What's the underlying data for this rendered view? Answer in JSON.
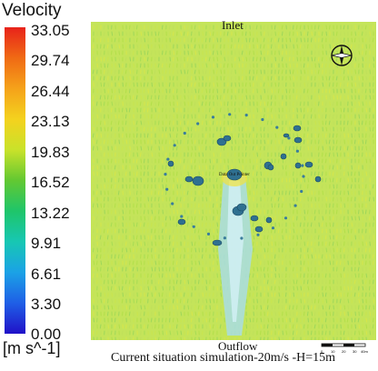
{
  "legend": {
    "title": "Velocity",
    "ticks": [
      "33.05",
      "29.74",
      "26.44",
      "23.13",
      "19.83",
      "16.52",
      "13.22",
      "9.91",
      "6.61",
      "3.30",
      "0.00"
    ],
    "units": "[m s^-1]"
  },
  "plot": {
    "inlet_label": "Inlet",
    "outflow_label": "Outflow",
    "caption": "Current situation simulation-20m/s -H=15m",
    "center_label": "Data Out Pointer",
    "dominant_color": "#b8e04a",
    "wake_color": "#9ad8e6",
    "obstacle_color": "#2a6a8a"
  },
  "scale_bar": {
    "labels": [
      "0",
      "10",
      "20",
      "30",
      "40m"
    ]
  }
}
